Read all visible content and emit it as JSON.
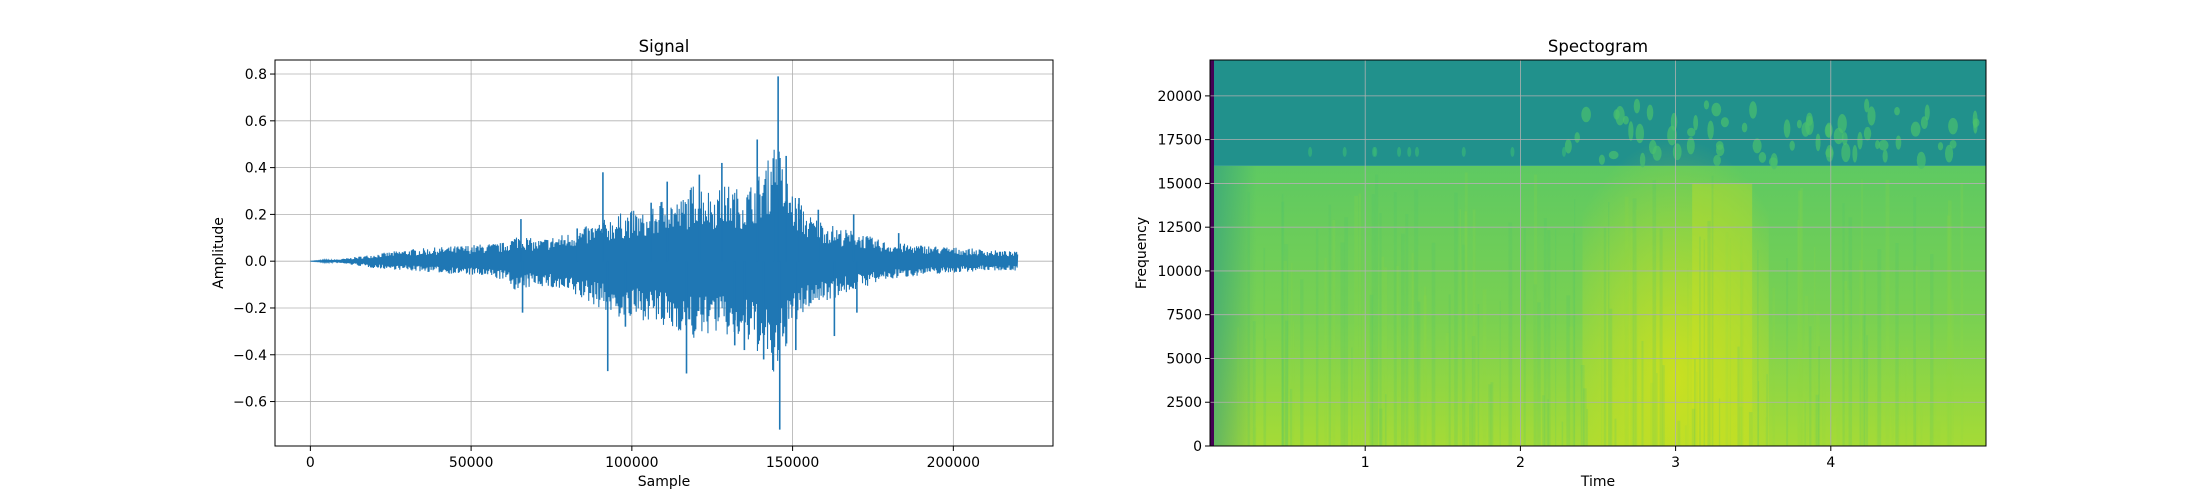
{
  "chart_data": [
    {
      "type": "line",
      "title": "Signal",
      "xlabel": "Sample",
      "ylabel": "Amplitude",
      "xlim": [
        -11000,
        231000
      ],
      "ylim": [
        -0.79,
        0.86
      ],
      "xticks": [
        0,
        50000,
        100000,
        150000,
        200000
      ],
      "xtick_labels": [
        "0",
        "50000",
        "100000",
        "150000",
        "200000"
      ],
      "yticks": [
        -0.6,
        -0.4,
        -0.2,
        0.0,
        0.2,
        0.4,
        0.6,
        0.8
      ],
      "ytick_labels": [
        "−0.6",
        "−0.4",
        "−0.2",
        "0.0",
        "0.2",
        "0.4",
        "0.6",
        "0.8"
      ],
      "grid": true,
      "color": "#1f77b4",
      "series": [
        {
          "envelope": {
            "x": [
              0,
              10000,
              20000,
              30000,
              40000,
              50000,
              60000,
              65000,
              70000,
              80000,
              90000,
              95000,
              100000,
              105000,
              110000,
              115000,
              120000,
              125000,
              130000,
              135000,
              140000,
              143000,
              145000,
              147000,
              150000,
              155000,
              160000,
              165000,
              170000,
              175000,
              180000,
              190000,
              200000,
              210000,
              220000
            ],
            "upper": [
              0.0,
              0.01,
              0.03,
              0.05,
              0.06,
              0.07,
              0.08,
              0.12,
              0.09,
              0.12,
              0.17,
              0.2,
              0.22,
              0.2,
              0.28,
              0.26,
              0.35,
              0.3,
              0.33,
              0.3,
              0.38,
              0.45,
              0.55,
              0.4,
              0.3,
              0.2,
              0.17,
              0.14,
              0.13,
              0.1,
              0.08,
              0.07,
              0.06,
              0.05,
              0.04
            ],
            "lower": [
              0.0,
              -0.01,
              -0.03,
              -0.04,
              -0.05,
              -0.06,
              -0.08,
              -0.14,
              -0.1,
              -0.14,
              -0.2,
              -0.24,
              -0.26,
              -0.25,
              -0.3,
              -0.3,
              -0.35,
              -0.3,
              -0.33,
              -0.35,
              -0.4,
              -0.48,
              -0.55,
              -0.4,
              -0.3,
              -0.2,
              -0.17,
              -0.15,
              -0.12,
              -0.1,
              -0.08,
              -0.06,
              -0.05,
              -0.04,
              -0.04
            ]
          },
          "spikes": [
            {
              "x": 65500,
              "y": 0.18
            },
            {
              "x": 66000,
              "y": -0.22
            },
            {
              "x": 83000,
              "y": 0.14
            },
            {
              "x": 91000,
              "y": 0.38
            },
            {
              "x": 92500,
              "y": -0.47
            },
            {
              "x": 98000,
              "y": -0.28
            },
            {
              "x": 106000,
              "y": 0.25
            },
            {
              "x": 111000,
              "y": 0.34
            },
            {
              "x": 117000,
              "y": -0.48
            },
            {
              "x": 121000,
              "y": 0.37
            },
            {
              "x": 128000,
              "y": 0.42
            },
            {
              "x": 132000,
              "y": -0.36
            },
            {
              "x": 135000,
              "y": -0.38
            },
            {
              "x": 139000,
              "y": 0.52
            },
            {
              "x": 141000,
              "y": -0.42
            },
            {
              "x": 144000,
              "y": 0.44
            },
            {
              "x": 145500,
              "y": 0.79
            },
            {
              "x": 146000,
              "y": -0.72
            },
            {
              "x": 148000,
              "y": 0.45
            },
            {
              "x": 151000,
              "y": -0.38
            },
            {
              "x": 152000,
              "y": 0.27
            },
            {
              "x": 158000,
              "y": 0.22
            },
            {
              "x": 163000,
              "y": -0.32
            },
            {
              "x": 169000,
              "y": 0.2
            },
            {
              "x": 170000,
              "y": -0.22
            },
            {
              "x": 183000,
              "y": 0.12
            }
          ]
        }
      ]
    },
    {
      "type": "heatmap",
      "title": "Spectogram",
      "xlabel": "Time",
      "ylabel": "Frequency",
      "xlim": [
        0,
        5
      ],
      "ylim": [
        0,
        22050
      ],
      "xticks": [
        1,
        2,
        3,
        4
      ],
      "xtick_labels": [
        "1",
        "2",
        "3",
        "4"
      ],
      "yticks": [
        0,
        2500,
        5000,
        7500,
        10000,
        12500,
        15000,
        17500,
        20000
      ],
      "ytick_labels": [
        "0",
        "2500",
        "5000",
        "7500",
        "10000",
        "12500",
        "15000",
        "17500",
        "20000"
      ],
      "grid": true,
      "colormap": "viridis",
      "colors": {
        "low": "#440154",
        "mid_low": "#21918c",
        "mid": "#5ec962",
        "high": "#d0e11c"
      },
      "cutoff_frequency": 16000,
      "loud_region_time": [
        2.4,
        3.6
      ],
      "loudest_time": 3.3
    }
  ]
}
